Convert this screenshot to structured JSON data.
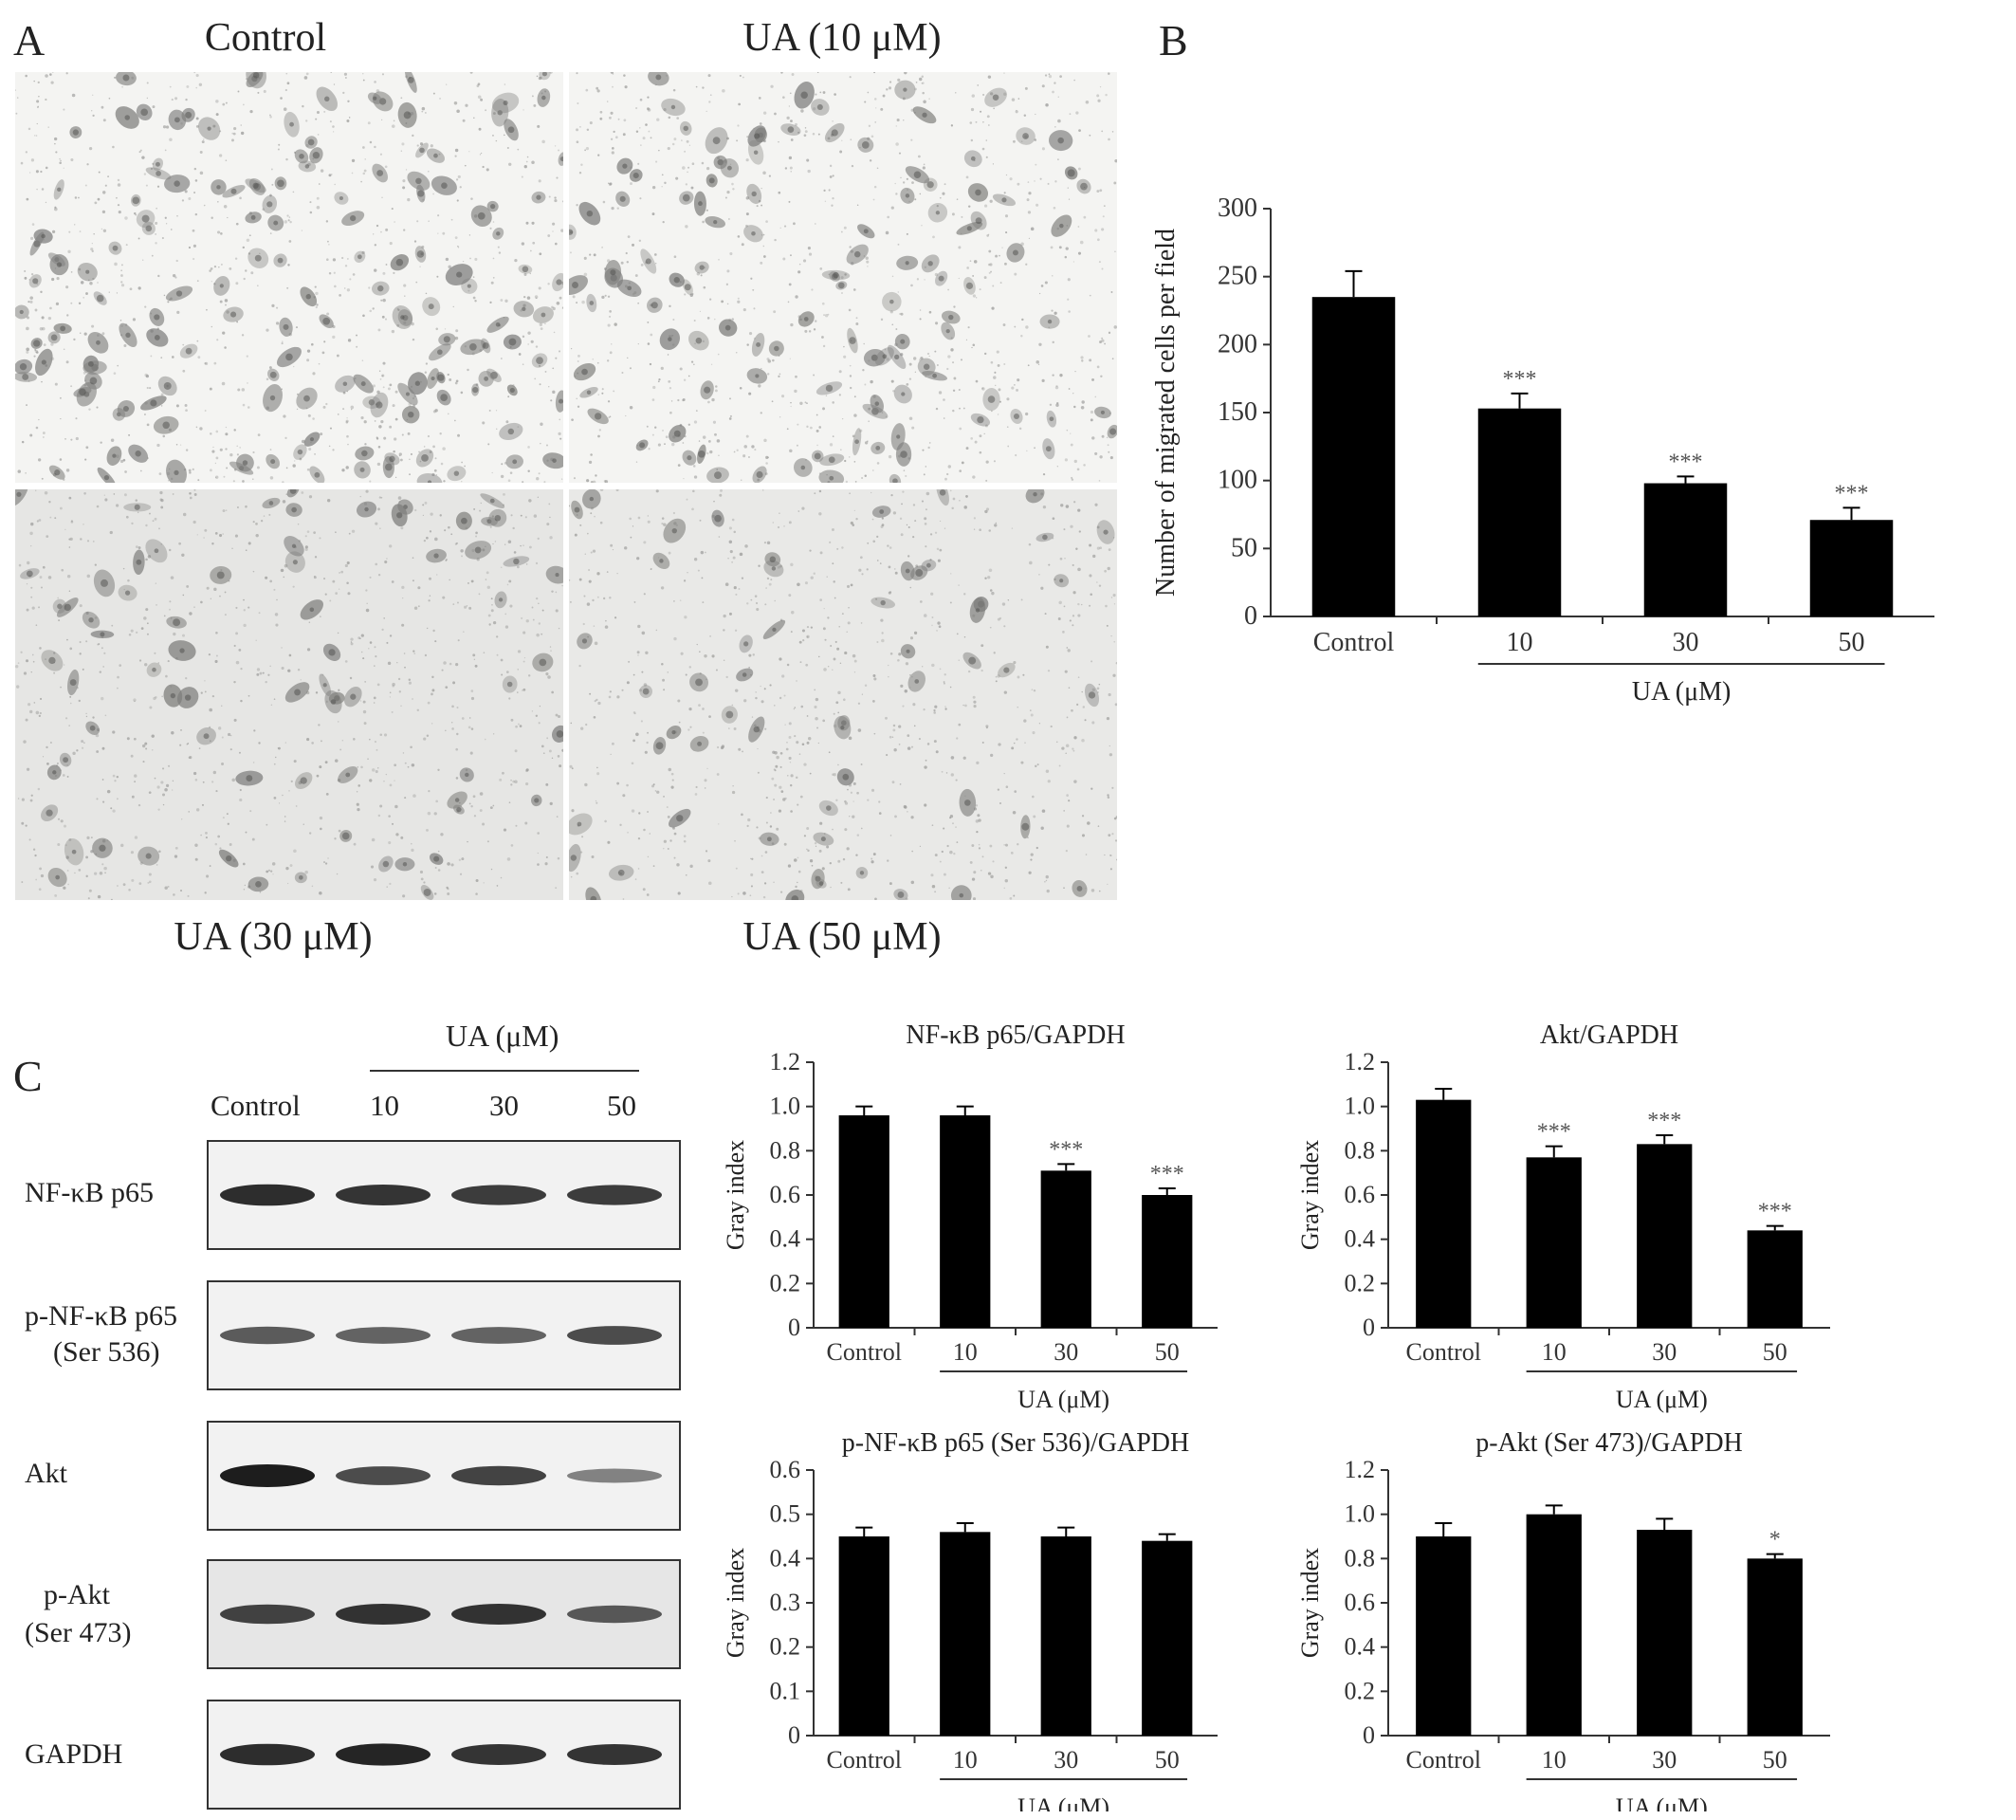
{
  "panel_a": {
    "letter": "A",
    "images": [
      {
        "label": "Control"
      },
      {
        "label": "UA (10 μM)"
      },
      {
        "label": "UA (30 μM)"
      },
      {
        "label": "UA (50 μM)"
      }
    ]
  },
  "panel_b": {
    "letter": "B"
  },
  "panel_c": {
    "letter": "C",
    "treatment_header": "UA (μM)",
    "lanes": [
      "Control",
      "10",
      "30",
      "50"
    ],
    "blots": [
      {
        "label": "NF-κB p65",
        "label2": ""
      },
      {
        "label": "p-NF-κB p65",
        "label2": "(Ser 536)"
      },
      {
        "label": "Akt",
        "label2": ""
      },
      {
        "label": "p-Akt",
        "label2": "(Ser 473)"
      },
      {
        "label": "GAPDH",
        "label2": ""
      }
    ],
    "band_intensity": [
      [
        0.9,
        0.85,
        0.8,
        0.8
      ],
      [
        0.6,
        0.55,
        0.55,
        0.7
      ],
      [
        1.0,
        0.7,
        0.75,
        0.35
      ],
      [
        0.75,
        0.85,
        0.85,
        0.6
      ],
      [
        0.9,
        0.95,
        0.85,
        0.85
      ]
    ]
  },
  "chart_data": [
    {
      "id": "B",
      "type": "bar",
      "title": "",
      "categories": [
        "Control",
        "10",
        "30",
        "50"
      ],
      "values": [
        235,
        153,
        98,
        71
      ],
      "errors": [
        19,
        11,
        5,
        9
      ],
      "significance": [
        "",
        "***",
        "***",
        "***"
      ],
      "ylabel": "Number of migrated cells per field",
      "xgroup_label": "UA (μM)",
      "ylim": [
        0,
        300
      ],
      "yticks": [
        "0",
        "50",
        "100",
        "150",
        "200",
        "250",
        "300"
      ],
      "bar_color": "#000000"
    },
    {
      "id": "C1",
      "type": "bar",
      "title": "NF-κB p65/GAPDH",
      "categories": [
        "Control",
        "10",
        "30",
        "50"
      ],
      "values": [
        0.96,
        0.96,
        0.71,
        0.6
      ],
      "errors": [
        0.04,
        0.04,
        0.03,
        0.03
      ],
      "significance": [
        "",
        "",
        "***",
        "***"
      ],
      "ylabel": "Gray index",
      "xgroup_label": "UA (μM)",
      "ylim": [
        0,
        1.2
      ],
      "yticks": [
        "0",
        "0.2",
        "0.4",
        "0.6",
        "0.8",
        "1.0",
        "1.2"
      ],
      "bar_color": "#000000"
    },
    {
      "id": "C2",
      "type": "bar",
      "title": "Akt/GAPDH",
      "categories": [
        "Control",
        "10",
        "30",
        "50"
      ],
      "values": [
        1.03,
        0.77,
        0.83,
        0.44
      ],
      "errors": [
        0.05,
        0.05,
        0.04,
        0.02
      ],
      "significance": [
        "",
        "***",
        "***",
        "***"
      ],
      "ylabel": "Gray index",
      "xgroup_label": "UA (μM)",
      "ylim": [
        0,
        1.2
      ],
      "yticks": [
        "0",
        "0.2",
        "0.4",
        "0.6",
        "0.8",
        "1.0",
        "1.2"
      ],
      "bar_color": "#000000"
    },
    {
      "id": "C3",
      "type": "bar",
      "title": "p-NF-κB p65 (Ser 536)/GAPDH",
      "categories": [
        "Control",
        "10",
        "30",
        "50"
      ],
      "values": [
        0.45,
        0.46,
        0.45,
        0.44
      ],
      "errors": [
        0.02,
        0.02,
        0.02,
        0.015
      ],
      "significance": [
        "",
        "",
        "",
        ""
      ],
      "ylabel": "Gray index",
      "xgroup_label": "UA (μM)",
      "ylim": [
        0,
        0.6
      ],
      "yticks": [
        "0",
        "0.1",
        "0.2",
        "0.3",
        "0.4",
        "0.5",
        "0.6"
      ],
      "bar_color": "#000000"
    },
    {
      "id": "C4",
      "type": "bar",
      "title": "p-Akt (Ser 473)/GAPDH",
      "categories": [
        "Control",
        "10",
        "30",
        "50"
      ],
      "values": [
        0.9,
        1.0,
        0.93,
        0.8
      ],
      "errors": [
        0.06,
        0.04,
        0.05,
        0.02
      ],
      "significance": [
        "",
        "",
        "",
        "*"
      ],
      "ylabel": "Gray index",
      "xgroup_label": "UA (μM)",
      "ylim": [
        0,
        1.2
      ],
      "yticks": [
        "0",
        "0.2",
        "0.4",
        "0.6",
        "0.8",
        "1.0",
        "1.2"
      ],
      "bar_color": "#000000"
    }
  ]
}
